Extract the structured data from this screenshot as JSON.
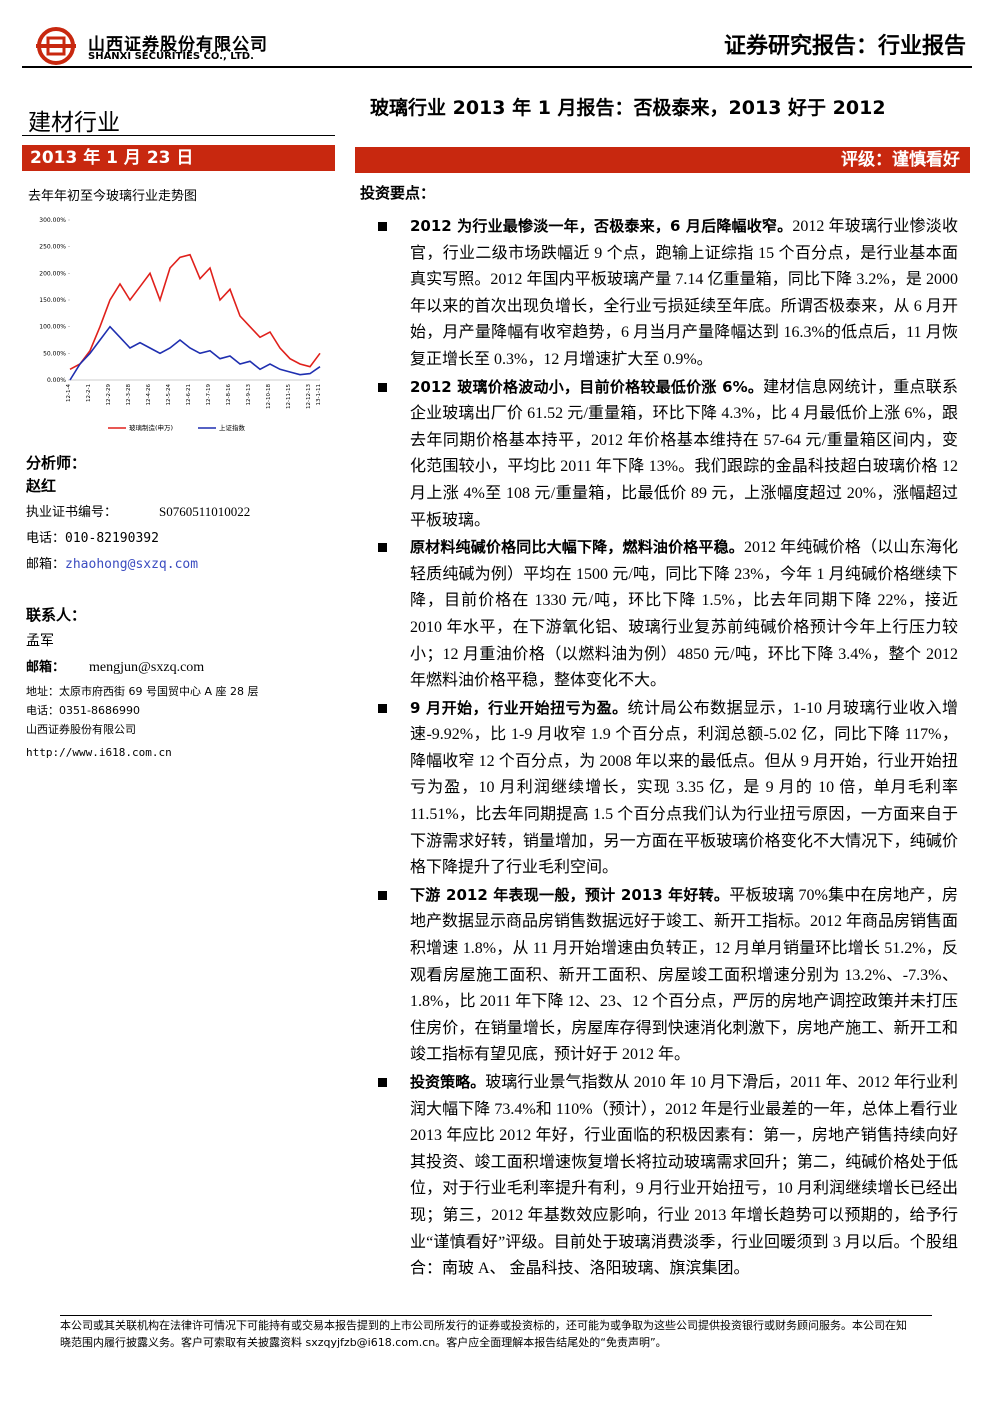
{
  "header": {
    "company_cn": "山西证券股份有限公司",
    "company_en": "SHANXI SECURITIES CO., LTD.",
    "report_type": "证券研究报告：行业报告"
  },
  "sector": "建材行业",
  "title": "玻璃行业 2013 年 1 月报告：否极泰来，2013 好于 2012",
  "date": "2013 年 1 月 23 日",
  "rating": "评级：谨慎看好",
  "chart_data": {
    "type": "line",
    "title": "去年年初至今玻璃行业走势图",
    "categories": [
      "12-1-4",
      null,
      "12-2-1",
      null,
      "12-2-29",
      null,
      "12-3-28",
      null,
      "12-4-26",
      null,
      "12-5-24",
      null,
      "12-6-21",
      null,
      "12-7-19",
      null,
      "12-8-16",
      null,
      "12-9-13",
      null,
      "12-10-18",
      null,
      "12-11-15",
      null,
      "12-12-13",
      "13-1-11"
    ],
    "ylim": [
      0,
      300
    ],
    "yticks": [
      {
        "value": 0,
        "label": "0.00%"
      },
      {
        "value": 50,
        "label": "50.00%"
      },
      {
        "value": 100,
        "label": "100.00%"
      },
      {
        "value": 150,
        "label": "150.00%"
      },
      {
        "value": 200,
        "label": "200.00%"
      },
      {
        "value": 250,
        "label": "250.00%"
      },
      {
        "value": 300,
        "label": "300.00%"
      }
    ],
    "series": [
      {
        "name": "玻璃制造(申万)",
        "color": "#e0201b",
        "values": [
          20,
          30,
          55,
          100,
          150,
          180,
          150,
          175,
          200,
          150,
          210,
          230,
          235,
          190,
          210,
          150,
          170,
          120,
          100,
          80,
          90,
          60,
          40,
          30,
          25,
          50
        ]
      },
      {
        "name": "上证指数",
        "color": "#1f2fb0",
        "values": [
          0,
          30,
          50,
          75,
          100,
          80,
          60,
          70,
          60,
          50,
          60,
          75,
          60,
          50,
          55,
          40,
          45,
          30,
          35,
          20,
          30,
          20,
          15,
          10,
          12,
          25
        ]
      }
    ]
  },
  "analyst": {
    "heading": "分析师：",
    "name": "赵红",
    "cert_label": "执业证书编号：",
    "cert": "S0760511010022",
    "phone_label": "电话：",
    "phone": "010-82190392",
    "email_label": "邮箱：",
    "email": "zhaohong@sxzq.com"
  },
  "contact": {
    "heading": "联系人：",
    "name": "孟军",
    "email_label": "邮箱：",
    "email": "mengjun@sxzq.com",
    "address": "地址：太原市府西街 69 号国贸中心 A 座 28 层",
    "phone": "电话：0351-8686990",
    "company": "山西证券股份有限公司",
    "website": "http://www.i618.com.cn"
  },
  "key_points_heading": "投资要点：",
  "bullets": [
    {
      "lead": "2012 为行业最惨淡一年，否极泰来，6 月后降幅收窄。",
      "text": "2012 年玻璃行业惨淡收官，行业二级市场跌幅近 9 个点，跑输上证综指 15 个百分点，是行业基本面真实写照。2012 年国内平板玻璃产量 7.14 亿重量箱，同比下降 3.2%，是 2000 年以来的首次出现负增长，全行业亏损延续至年底。所谓否极泰来，从 6 月开始，月产量降幅有收窄趋势，6 月当月产量降幅达到 16.3%的低点后，11 月恢复正增长至 0.3%，12 月增速扩大至 0.9%。"
    },
    {
      "lead": "2012 玻璃价格波动小，目前价格较最低价涨 6%。",
      "text": "建材信息网统计，重点联系企业玻璃出厂价 61.52 元/重量箱，环比下降 4.3%，比 4 月最低价上涨 6%，跟去年同期价格基本持平，2012 年价格基本维持在 57-64 元/重量箱区间内，变化范围较小，平均比 2011 年下降 13%。我们跟踪的金晶科技超白玻璃价格 12 月上涨 4%至 108 元/重量箱，比最低价 89 元，上涨幅度超过 20%，涨幅超过平板玻璃。"
    },
    {
      "lead": "原材料纯碱价格同比大幅下降，燃料油价格平稳。",
      "text": "2012 年纯碱价格（以山东海化轻质纯碱为例）平均在 1500 元/吨，同比下降 23%，今年 1 月纯碱价格继续下降，目前价格在 1330 元/吨，环比下降 1.5%，比去年同期下降 22%，接近 2010 年水平，在下游氧化铝、玻璃行业复苏前纯碱价格预计今年上行压力较小；12 月重油价格（以燃料油为例）4850 元/吨，环比下降 3.4%，整个 2012 年燃料油价格平稳，整体变化不大。"
    },
    {
      "lead": "9 月开始，行业开始扭亏为盈。",
      "text": "统计局公布数据显示，1-10 月玻璃行业收入增速-9.92%，比 1-9 月收窄 1.9 个百分点，利润总额-5.02 亿，同比下降 117%，降幅收窄 12 个百分点，为 2008 年以来的最低点。但从 9 月开始，行业开始扭亏为盈，10 月利润继续增长，实现 3.35 亿，是 9 月的 10 倍，单月毛利率 11.51%，比去年同期提高 1.5 个百分点我们认为行业扭亏原因，一方面来自于下游需求好转，销量增加，另一方面在平板玻璃价格变化不大情况下，纯碱价格下降提升了行业毛利空间。"
    },
    {
      "lead": "下游 2012 年表现一般，预计 2013 年好转。",
      "text": "平板玻璃 70%集中在房地产，房地产数据显示商品房销售数据远好于竣工、新开工指标。2012 年商品房销售面积增速 1.8%，从 11 月开始增速由负转正，12 月单月销量环比增长 51.2%，反观看房屋施工面积、新开工面积、房屋竣工面积增速分别为 13.2%、-7.3%、1.8%，比 2011 年下降 12、23、12 个百分点，严厉的房地产调控政策并未打压住房价，在销量增长，房屋库存得到快速消化刺激下，房地产施工、新开工和竣工指标有望见底，预计好于 2012 年。"
    },
    {
      "lead": "投资策略。",
      "text": "玻璃行业景气指数从 2010 年 10 月下滑后，2011 年、2012 年行业利润大幅下降 73.4%和 110%（预计），2012 年是行业最差的一年，总体上看行业 2013 年应比 2012 年好，行业面临的积极因素有：第一，房地产销售持续向好其投资、竣工面积增速恢复增长将拉动玻璃需求回升；第二，纯碱价格处于低位，对于行业毛利率提升有利，9 月行业开始扭亏，10 月利润继续增长已经出现；第三，2012 年基数效应影响，行业 2013 年增长趋势可以预期的，给予行业“谨慎看好”评级。目前处于玻璃消费淡季，行业回暖须到 3 月以后。个股组合：南玻 A、 金晶科技、洛阳玻璃、旗滨集团。"
    }
  ],
  "footer": "本公司或其关联机构在法律许可情况下可能持有或交易本报告提到的上市公司所发行的证券或投资标的，还可能为或争取为这些公司提供投资银行或财务顾问服务。本公司在知晓范围内履行披露义务。客户可索取有关披露资料 sxzqyjfzb@i618.com.cn。客户应全面理解本报告结尾处的“免责声明”。"
}
